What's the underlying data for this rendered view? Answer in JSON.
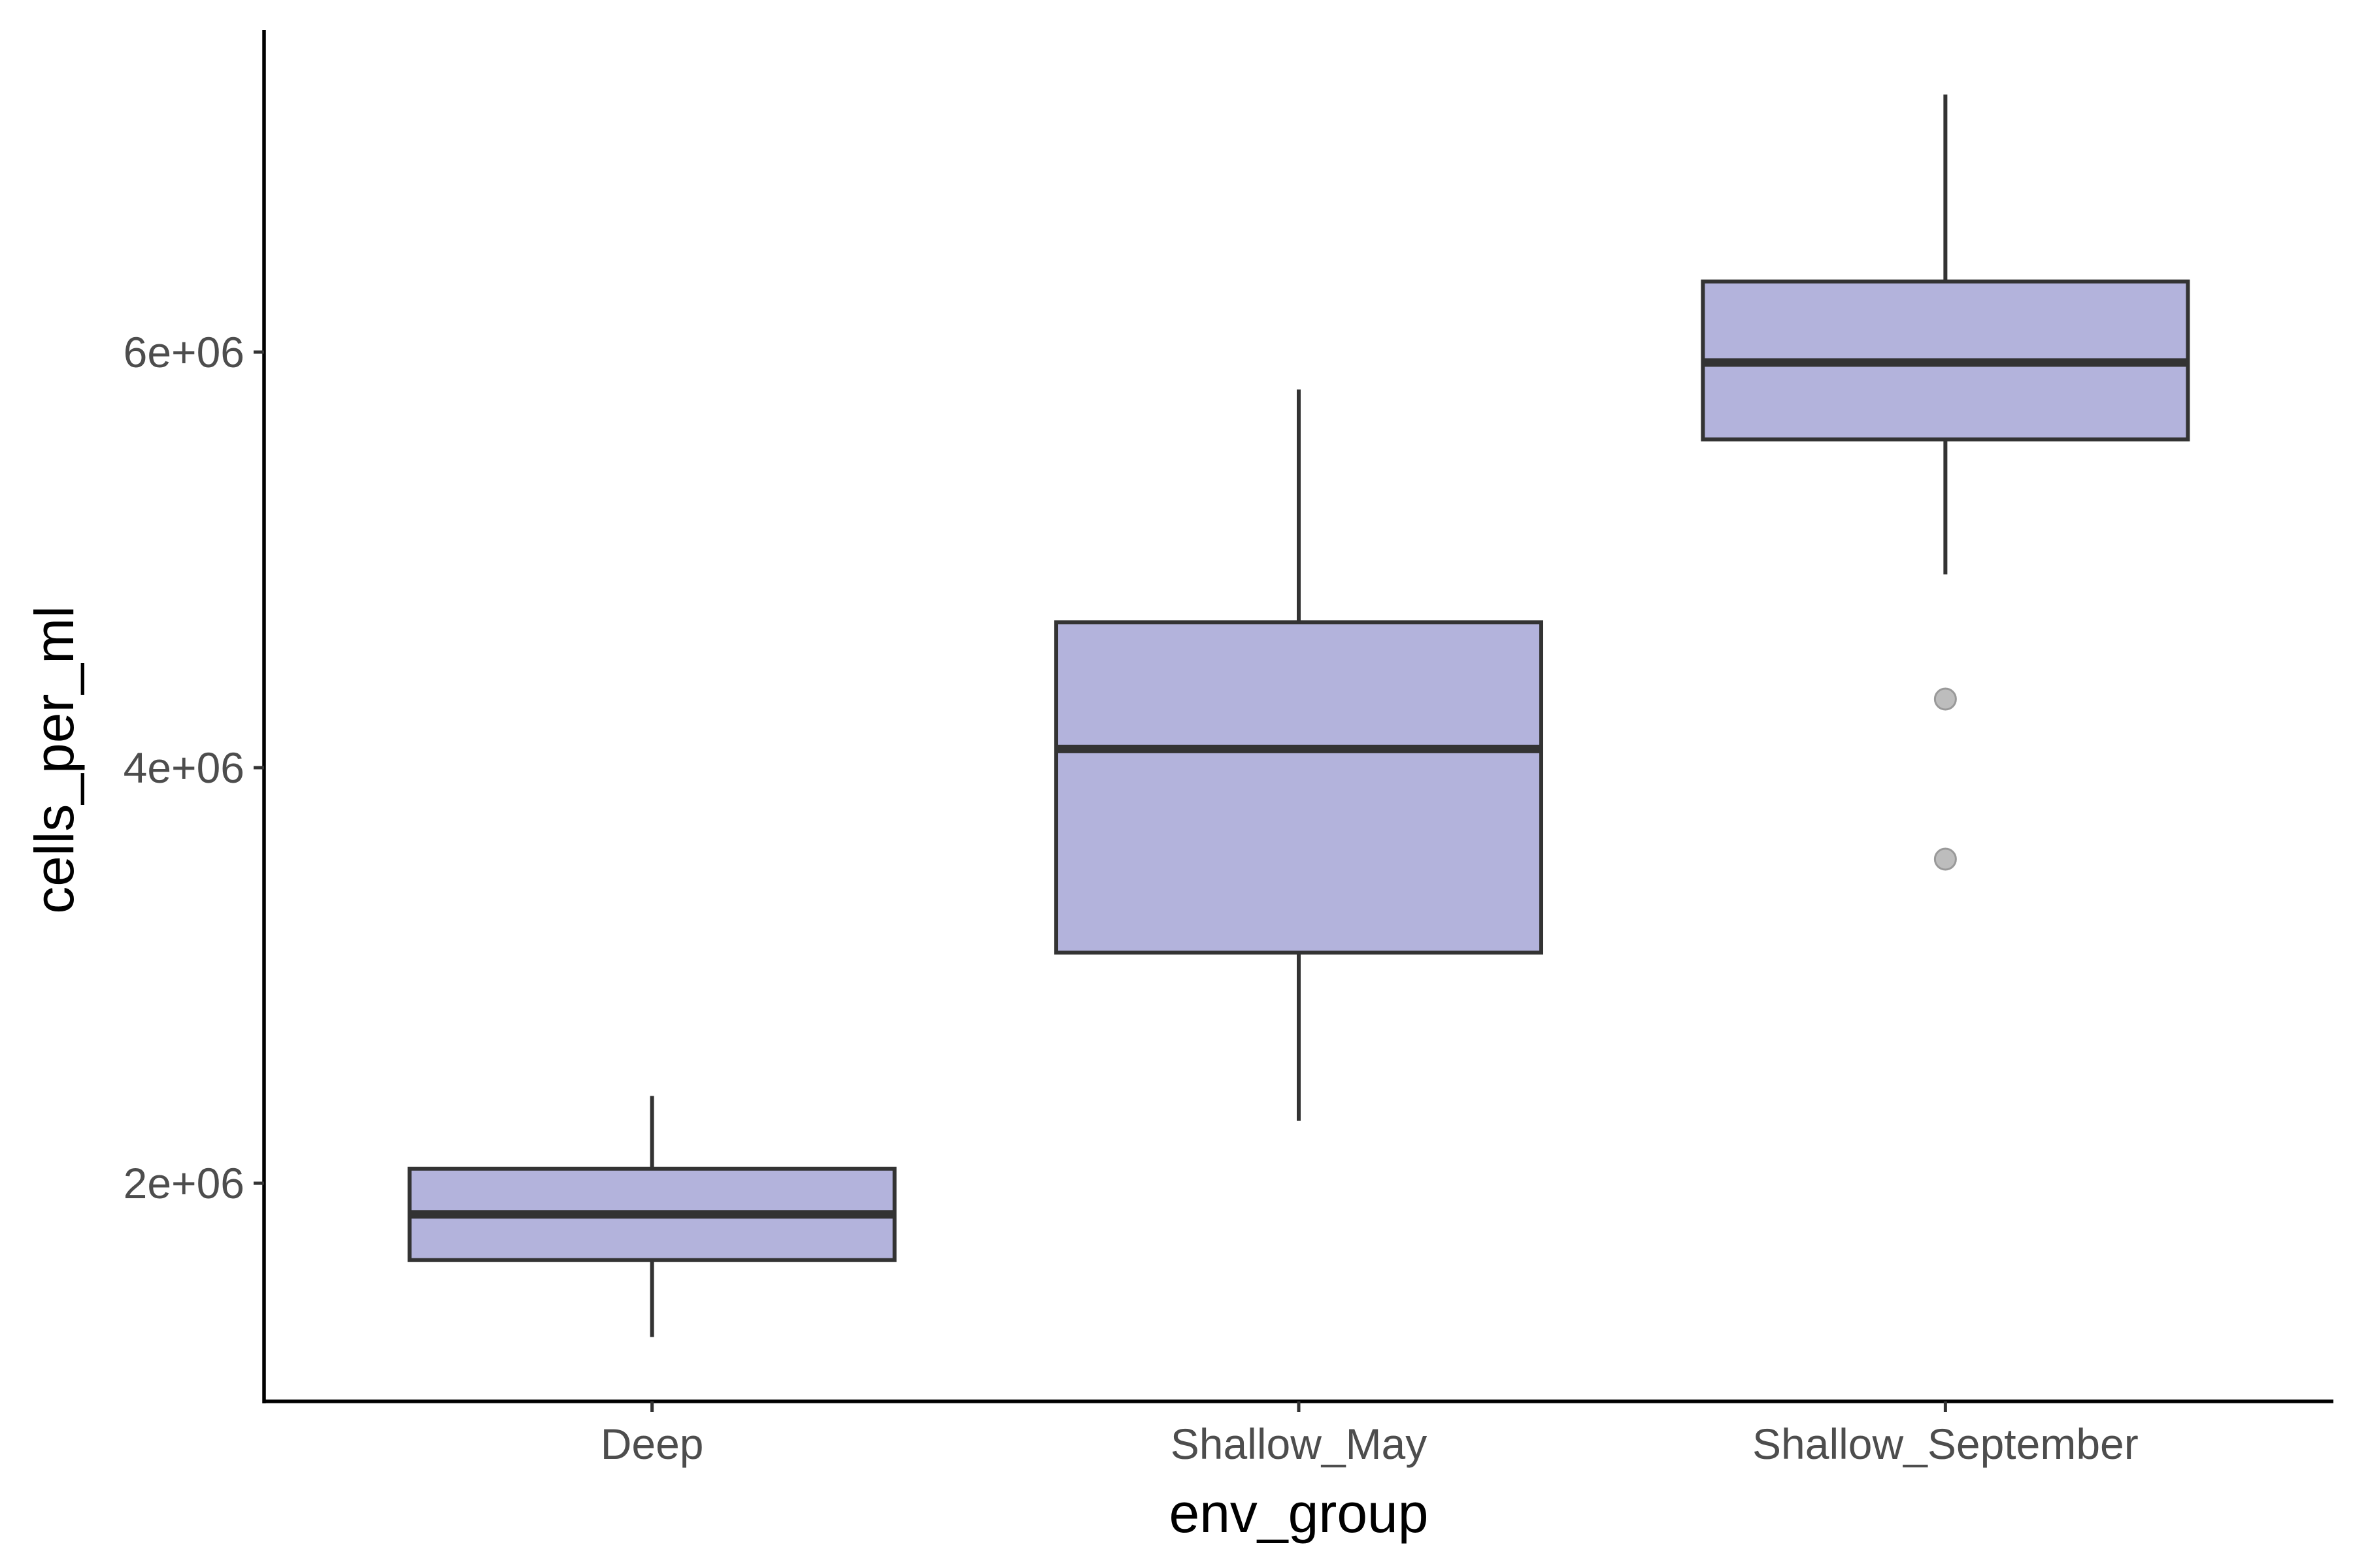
{
  "chart_data": {
    "type": "box",
    "title": "",
    "xlabel": "env_group",
    "ylabel": "cells_per_ml",
    "ylim": [
      950000,
      7550000
    ],
    "y_ticks": [
      {
        "value": 2000000,
        "label": "2e+06"
      },
      {
        "value": 4000000,
        "label": "4e+06"
      },
      {
        "value": 6000000,
        "label": "6e+06"
      }
    ],
    "categories": [
      "Deep",
      "Shallow_May",
      "Shallow_September"
    ],
    "boxes": [
      {
        "category": "Deep",
        "whisker_low": 1260000,
        "q1": 1630000,
        "median": 1850000,
        "q3": 2070000,
        "whisker_high": 2420000,
        "outliers": []
      },
      {
        "category": "Shallow_May",
        "whisker_low": 2300000,
        "q1": 3110000,
        "median": 4090000,
        "q3": 4700000,
        "whisker_high": 5820000,
        "outliers": []
      },
      {
        "category": "Shallow_September",
        "whisker_low": 4930000,
        "q1": 5580000,
        "median": 5950000,
        "q3": 6340000,
        "whisker_high": 7240000,
        "outliers": [
          4330000,
          3560000
        ]
      }
    ],
    "fill_color": "#b3b3dc",
    "line_color": "#333333",
    "outlier_color": "#bdbdbd",
    "grid": false,
    "legend": "none"
  }
}
